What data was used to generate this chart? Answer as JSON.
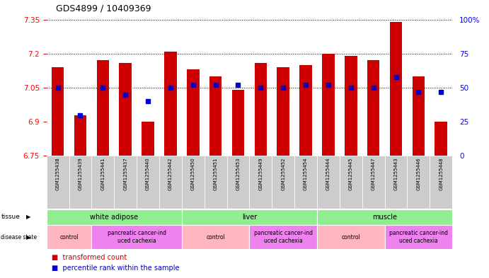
{
  "title": "GDS4899 / 10409369",
  "samples": [
    "GSM1255438",
    "GSM1255439",
    "GSM1255441",
    "GSM1255437",
    "GSM1255440",
    "GSM1255442",
    "GSM1255450",
    "GSM1255451",
    "GSM1255453",
    "GSM1255449",
    "GSM1255452",
    "GSM1255454",
    "GSM1255444",
    "GSM1255445",
    "GSM1255447",
    "GSM1255443",
    "GSM1255446",
    "GSM1255448"
  ],
  "bar_values": [
    7.14,
    6.93,
    7.17,
    7.16,
    6.9,
    7.21,
    7.13,
    7.1,
    7.04,
    7.16,
    7.14,
    7.15,
    7.2,
    7.19,
    7.17,
    7.34,
    7.1,
    6.9
  ],
  "percentile_values": [
    50,
    30,
    50,
    45,
    40,
    50,
    52,
    52,
    52,
    50,
    50,
    52,
    52,
    50,
    50,
    58,
    47,
    47
  ],
  "ymin": 6.75,
  "ymax": 7.35,
  "y2min": 0,
  "y2max": 100,
  "yticks": [
    6.75,
    6.9,
    7.05,
    7.2,
    7.35
  ],
  "ytick_labels": [
    "6.75",
    "6.9",
    "7.05",
    "7.2",
    "7.35"
  ],
  "y2ticks": [
    0,
    25,
    50,
    75,
    100
  ],
  "y2tick_labels": [
    "0",
    "25",
    "50",
    "75",
    "100%"
  ],
  "hlines": [
    7.05,
    7.2,
    7.35
  ],
  "bar_color": "#cc0000",
  "percentile_color": "#0000cc",
  "bar_bottom": 6.75,
  "tissue_groups": [
    {
      "label": "white adipose",
      "start": 0,
      "end": 5,
      "color": "#90ee90"
    },
    {
      "label": "liver",
      "start": 6,
      "end": 11,
      "color": "#90ee90"
    },
    {
      "label": "muscle",
      "start": 12,
      "end": 17,
      "color": "#90ee90"
    }
  ],
  "disease_groups": [
    {
      "label": "control",
      "start": 0,
      "end": 1,
      "color": "#ffb6c1"
    },
    {
      "label": "pancreatic cancer-ind\nuced cachexia",
      "start": 2,
      "end": 5,
      "color": "#ee82ee"
    },
    {
      "label": "control",
      "start": 6,
      "end": 8,
      "color": "#ffb6c1"
    },
    {
      "label": "pancreatic cancer-ind\nuced cachexia",
      "start": 9,
      "end": 11,
      "color": "#ee82ee"
    },
    {
      "label": "control",
      "start": 12,
      "end": 14,
      "color": "#ffb6c1"
    },
    {
      "label": "pancreatic cancer-ind\nuced cachexia",
      "start": 15,
      "end": 17,
      "color": "#ee82ee"
    }
  ]
}
